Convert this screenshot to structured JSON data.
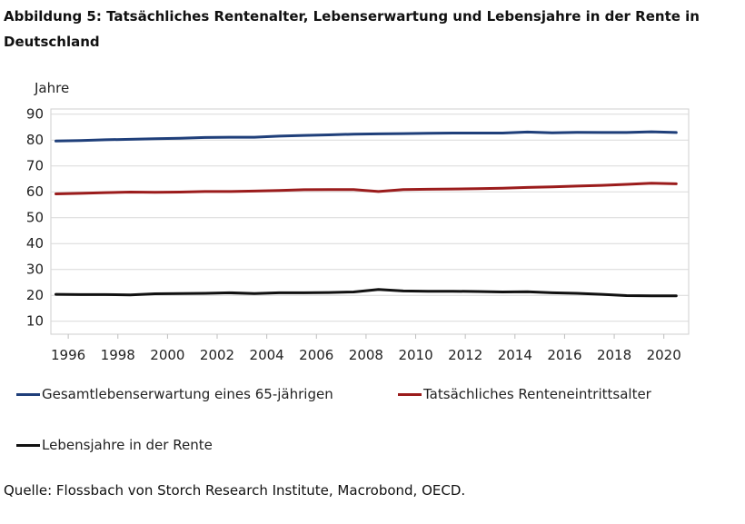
{
  "title": "Abbildung 5: Tatsächliches Rentenalter, Lebenserwartung und Lebensjahre in der Rente in Deutschland",
  "source": "Quelle: Flossbach von Storch Research Institute, Macrobond, OECD.",
  "chart_data": {
    "type": "line",
    "ylabel": "Jahre",
    "xlabel": "",
    "ylim": [
      5,
      92
    ],
    "xlim": [
      1995.3,
      2021
    ],
    "yticks": [
      10,
      20,
      30,
      40,
      50,
      60,
      70,
      80,
      90
    ],
    "xticks": [
      1996,
      1998,
      2000,
      2002,
      2004,
      2006,
      2008,
      2010,
      2012,
      2014,
      2016,
      2018,
      2020
    ],
    "grid": true,
    "legend_position": "bottom",
    "x": [
      1995.5,
      1996.5,
      1997.5,
      1998.5,
      1999.5,
      2000.5,
      2001.5,
      2002.5,
      2003.5,
      2004.5,
      2005.5,
      2006.5,
      2007.5,
      2008.5,
      2009.5,
      2010.5,
      2011.5,
      2012.5,
      2013.5,
      2014.5,
      2015.5,
      2016.5,
      2017.5,
      2018.5,
      2019.5,
      2020.5
    ],
    "series": [
      {
        "name": "Gesamtlebenserwartung eines 65-jährigen",
        "color": "#1f3f7a",
        "values": [
          79.6,
          79.8,
          80.1,
          80.3,
          80.5,
          80.7,
          81.0,
          81.1,
          81.1,
          81.5,
          81.8,
          82.0,
          82.3,
          82.4,
          82.5,
          82.6,
          82.7,
          82.7,
          82.7,
          83.1,
          82.8,
          83.0,
          82.9,
          82.9,
          83.2,
          82.9
        ]
      },
      {
        "name": "Tatsächliches Renteneintrittsalter",
        "color": "#9b1c1c",
        "values": [
          59.2,
          59.4,
          59.7,
          59.9,
          59.8,
          59.9,
          60.1,
          60.1,
          60.3,
          60.5,
          60.8,
          60.9,
          60.9,
          60.1,
          60.9,
          61.0,
          61.1,
          61.2,
          61.4,
          61.7,
          61.9,
          62.2,
          62.5,
          62.9,
          63.3,
          63.1
        ]
      },
      {
        "name": "Lebensjahre in der Rente",
        "color": "#111111",
        "values": [
          20.4,
          20.3,
          20.3,
          20.2,
          20.6,
          20.7,
          20.8,
          21.0,
          20.7,
          21.0,
          21.0,
          21.1,
          21.3,
          22.3,
          21.7,
          21.6,
          21.6,
          21.5,
          21.3,
          21.4,
          21.0,
          20.8,
          20.4,
          19.9,
          19.8,
          19.8
        ]
      }
    ]
  }
}
